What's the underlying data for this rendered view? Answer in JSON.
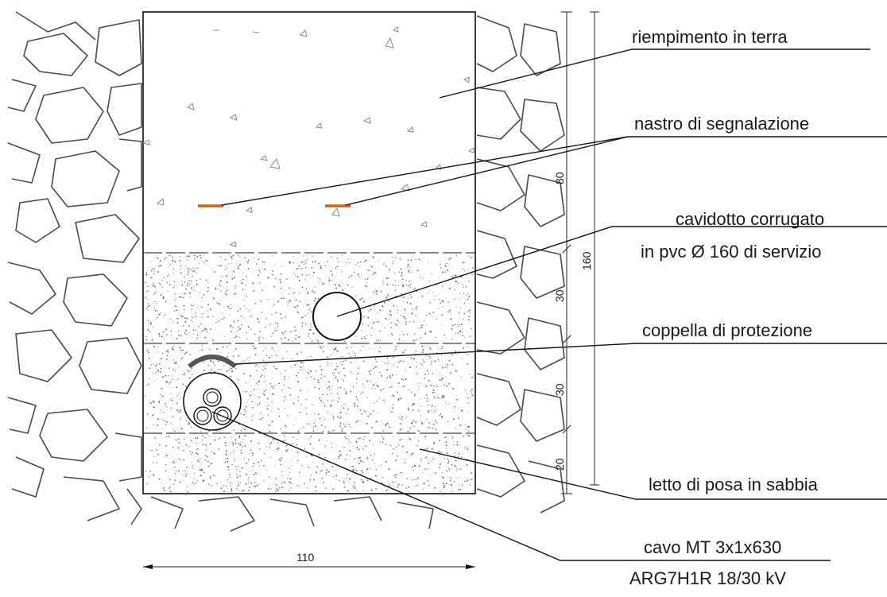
{
  "colors": {
    "line": "#111111",
    "rock": "#4a4a4a",
    "tape": "#c8641e",
    "sand_dot": "#6a6a6a",
    "fill_mark": "#888888",
    "coppella": "#555555"
  },
  "labels": {
    "fill": "riempimento in terra",
    "tape": "nastro di segnalazione",
    "duct_line1": "cavidotto corrugato",
    "duct_line2": "in pvc Ø 160 di servizio",
    "coppella": "coppella di protezione",
    "bed": "letto di posa in sabbia",
    "cable_line1": "cavo MT 3x1x630",
    "cable_line2": "ARG7H1R 18/30 kV"
  },
  "dimensions": {
    "width": "110",
    "fill_depth": "80",
    "upper_sand": "30",
    "lower_sand": "30",
    "bed": "20",
    "total": "160"
  }
}
